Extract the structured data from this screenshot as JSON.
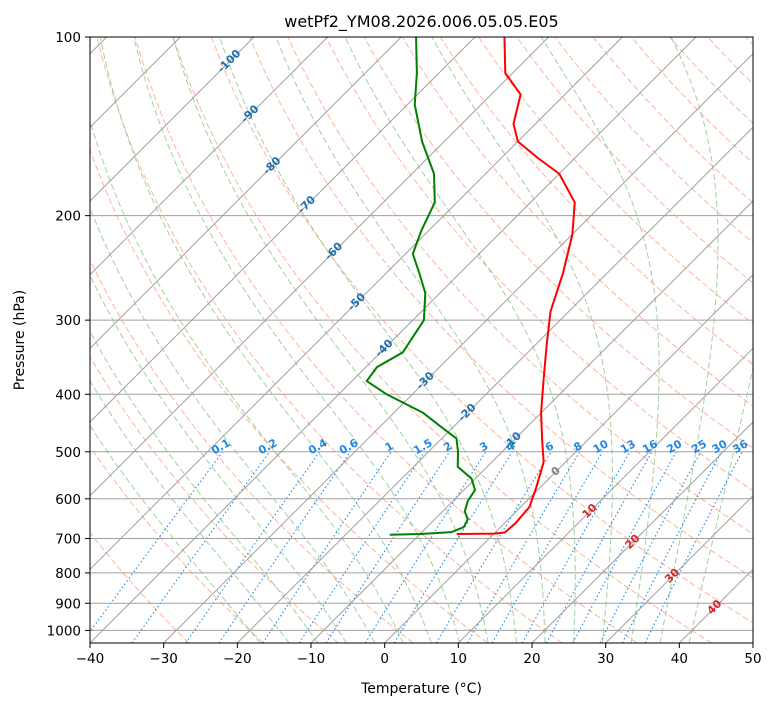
{
  "chart_data": {
    "type": "skew-t",
    "title": "wetPf2_YM08.2026.006.05.05.E05",
    "xlabel": "Temperature (°C)",
    "ylabel": "Pressure (hPa)",
    "xlim": [
      -40,
      50
    ],
    "ylim_hpa": [
      1050,
      100
    ],
    "x_ticks": [
      "−40",
      "−30",
      "−20",
      "−10",
      "0",
      "10",
      "20",
      "30",
      "40",
      "50"
    ],
    "y_ticks": [
      {
        "p": 100,
        "label": "100"
      },
      {
        "p": 200,
        "label": "200"
      },
      {
        "p": 300,
        "label": "300"
      },
      {
        "p": 400,
        "label": "400"
      },
      {
        "p": 500,
        "label": "500"
      },
      {
        "p": 600,
        "label": "600"
      },
      {
        "p": 700,
        "label": "700"
      },
      {
        "p": 800,
        "label": "800"
      },
      {
        "p": 900,
        "label": "900"
      },
      {
        "p": 1000,
        "label": "1000"
      }
    ],
    "colors": {
      "temperature": "#ff0000",
      "dewpoint": "#008000",
      "isotherm": "#a0a0a0",
      "dry_adiabat": "#ff9a7a",
      "moist_adiabat": "#8fc98f",
      "mixing_ratio": "#1e88e5",
      "isotherm_label": "#1f6fb0",
      "adiabat_label": "#d62728"
    },
    "isotherm_labels": [
      {
        "t": -100,
        "p": 110,
        "text": "-100"
      },
      {
        "t": -90,
        "p": 135,
        "text": "-90"
      },
      {
        "t": -80,
        "p": 165,
        "text": "-80"
      },
      {
        "t": -70,
        "p": 192,
        "text": "-70"
      },
      {
        "t": -60,
        "p": 230,
        "text": "-60"
      },
      {
        "t": -50,
        "p": 280,
        "text": "-50"
      },
      {
        "t": -40,
        "p": 335,
        "text": "-40"
      },
      {
        "t": -30,
        "p": 380,
        "text": "-30"
      },
      {
        "t": -20,
        "p": 430,
        "text": "-20"
      },
      {
        "t": -10,
        "p": 480,
        "text": "-10"
      },
      {
        "t": 0,
        "p": 540,
        "text": "0"
      },
      {
        "t": 10,
        "p": 630,
        "text": "10"
      },
      {
        "t": 20,
        "p": 710,
        "text": "20"
      },
      {
        "t": 30,
        "p": 810,
        "text": "30"
      },
      {
        "t": 40,
        "p": 915,
        "text": "40"
      }
    ],
    "mixing_ratio_labels": [
      "0.1",
      "0.2",
      "0.4",
      "0.6",
      "1",
      "1.5",
      "2",
      "3",
      "4",
      "6",
      "8",
      "10",
      "13",
      "16",
      "20",
      "25",
      "30",
      "36"
    ],
    "temperature_profile": [
      {
        "p": 688,
        "t": -5.0
      },
      {
        "p": 687,
        "t": 0.0
      },
      {
        "p": 684,
        "t": 1.3
      },
      {
        "p": 660,
        "t": 1.5
      },
      {
        "p": 620,
        "t": 1.2
      },
      {
        "p": 575,
        "t": -0.5
      },
      {
        "p": 520,
        "t": -3.0
      },
      {
        "p": 480,
        "t": -6.0
      },
      {
        "p": 430,
        "t": -10.0
      },
      {
        "p": 380,
        "t": -14.0
      },
      {
        "p": 330,
        "t": -18.5
      },
      {
        "p": 290,
        "t": -22.5
      },
      {
        "p": 250,
        "t": -26.0
      },
      {
        "p": 215,
        "t": -30.0
      },
      {
        "p": 190,
        "t": -34.0
      },
      {
        "p": 170,
        "t": -40.0
      },
      {
        "p": 160,
        "t": -45.0
      },
      {
        "p": 150,
        "t": -50.0
      },
      {
        "p": 140,
        "t": -53.0
      },
      {
        "p": 125,
        "t": -56.0
      },
      {
        "p": 115,
        "t": -61.0
      },
      {
        "p": 100,
        "t": -66.0
      }
    ],
    "dewpoint_profile": [
      {
        "p": 690,
        "t": -14.0
      },
      {
        "p": 688,
        "t": -10.0
      },
      {
        "p": 683,
        "t": -6.0
      },
      {
        "p": 670,
        "t": -5.0
      },
      {
        "p": 650,
        "t": -5.5
      },
      {
        "p": 630,
        "t": -7.0
      },
      {
        "p": 605,
        "t": -8.0
      },
      {
        "p": 580,
        "t": -8.5
      },
      {
        "p": 555,
        "t": -10.5
      },
      {
        "p": 530,
        "t": -14.0
      },
      {
        "p": 500,
        "t": -16.0
      },
      {
        "p": 475,
        "t": -18.0
      },
      {
        "p": 455,
        "t": -21.5
      },
      {
        "p": 430,
        "t": -26.0
      },
      {
        "p": 400,
        "t": -33.5
      },
      {
        "p": 380,
        "t": -38.0
      },
      {
        "p": 360,
        "t": -38.5
      },
      {
        "p": 340,
        "t": -37.0
      },
      {
        "p": 300,
        "t": -38.5
      },
      {
        "p": 270,
        "t": -42.0
      },
      {
        "p": 250,
        "t": -45.5
      },
      {
        "p": 232,
        "t": -49.0
      },
      {
        "p": 212,
        "t": -51.0
      },
      {
        "p": 190,
        "t": -53.0
      },
      {
        "p": 170,
        "t": -57.0
      },
      {
        "p": 150,
        "t": -63.0
      },
      {
        "p": 130,
        "t": -69.0
      },
      {
        "p": 115,
        "t": -73.0
      },
      {
        "p": 100,
        "t": -78.0
      }
    ]
  }
}
